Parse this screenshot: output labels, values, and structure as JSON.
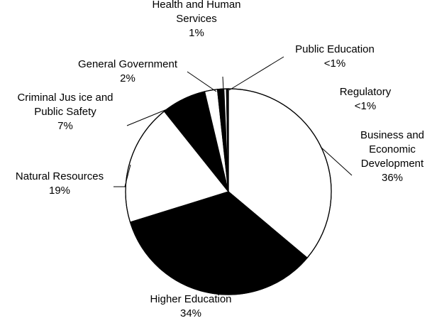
{
  "chart_data": {
    "type": "pie",
    "title": "",
    "legend": "none",
    "slices": [
      {
        "label_lines": [
          "Business and",
          "Economic",
          "Development"
        ],
        "pct_text": "36%",
        "value": 36,
        "color": "#ffffff"
      },
      {
        "label_lines": [
          "Higher Education"
        ],
        "pct_text": "34%",
        "value": 34,
        "color": "#000000"
      },
      {
        "label_lines": [
          "Natural Resources"
        ],
        "pct_text": "19%",
        "value": 19,
        "color": "#ffffff"
      },
      {
        "label_lines": [
          "Criminal Jus ice and",
          "Public Safety"
        ],
        "pct_text": "7%",
        "value": 7,
        "color": "#000000"
      },
      {
        "label_lines": [
          "General Government"
        ],
        "pct_text": "2%",
        "value": 2,
        "color": "#ffffff"
      },
      {
        "label_lines": [
          "Health and Human",
          "Services"
        ],
        "pct_text": "1%",
        "value": 1,
        "color": "#000000"
      },
      {
        "label_lines": [
          "Public Education"
        ],
        "pct_text": "<1%",
        "value": 0.4,
        "color": "#ffffff"
      },
      {
        "label_lines": [
          "Regulatory"
        ],
        "pct_text": "<1%",
        "value": 0.3,
        "color": "#000000"
      }
    ]
  }
}
